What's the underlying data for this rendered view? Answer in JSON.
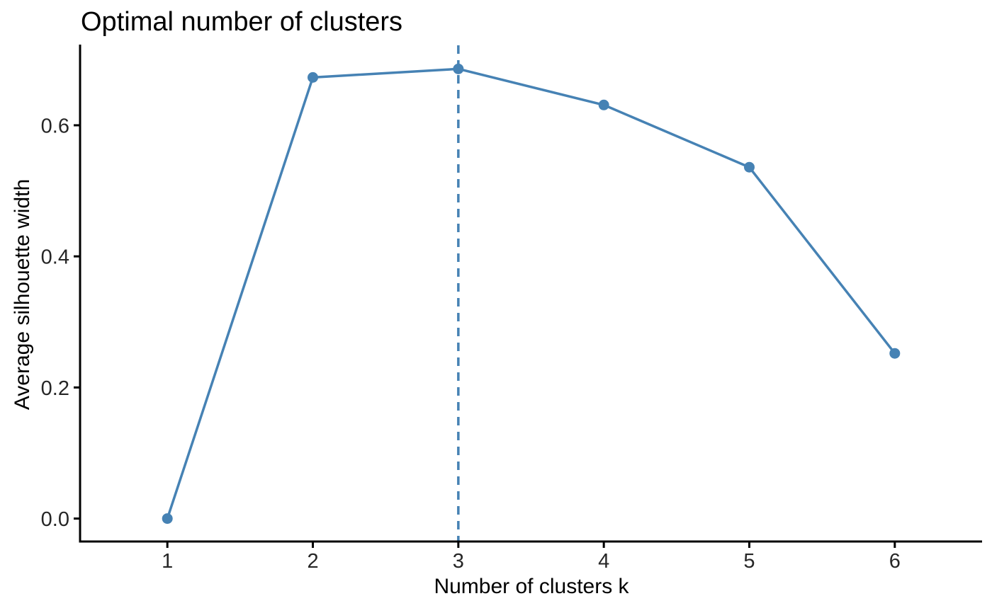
{
  "page": {
    "background": "#ffffff"
  },
  "chart_data": {
    "type": "line",
    "title": "Optimal number of clusters",
    "xlabel": "Number of clusters k",
    "ylabel": "Average silhouette width",
    "x": [
      1,
      2,
      3,
      4,
      5,
      6
    ],
    "values": [
      0.0,
      0.673,
      0.686,
      0.631,
      0.536,
      0.252
    ],
    "xtick_labels": [
      "1",
      "2",
      "3",
      "4",
      "5",
      "6"
    ],
    "ytick_values": [
      0.0,
      0.2,
      0.4,
      0.6
    ],
    "ytick_labels": [
      "0.0",
      "0.2",
      "0.4",
      "0.6"
    ],
    "xlim": [
      0.4,
      6.6
    ],
    "ylim": [
      -0.035,
      0.722
    ],
    "optimal_k": 3,
    "vline": {
      "x": 3,
      "style": "dashed"
    },
    "grid": false,
    "legend": "none",
    "colors": {
      "line": "#4682B4",
      "point": "#4682B4",
      "vline": "#4682B4",
      "axis": "#000000",
      "tick_text": "#262626",
      "title_text": "#000000"
    }
  }
}
